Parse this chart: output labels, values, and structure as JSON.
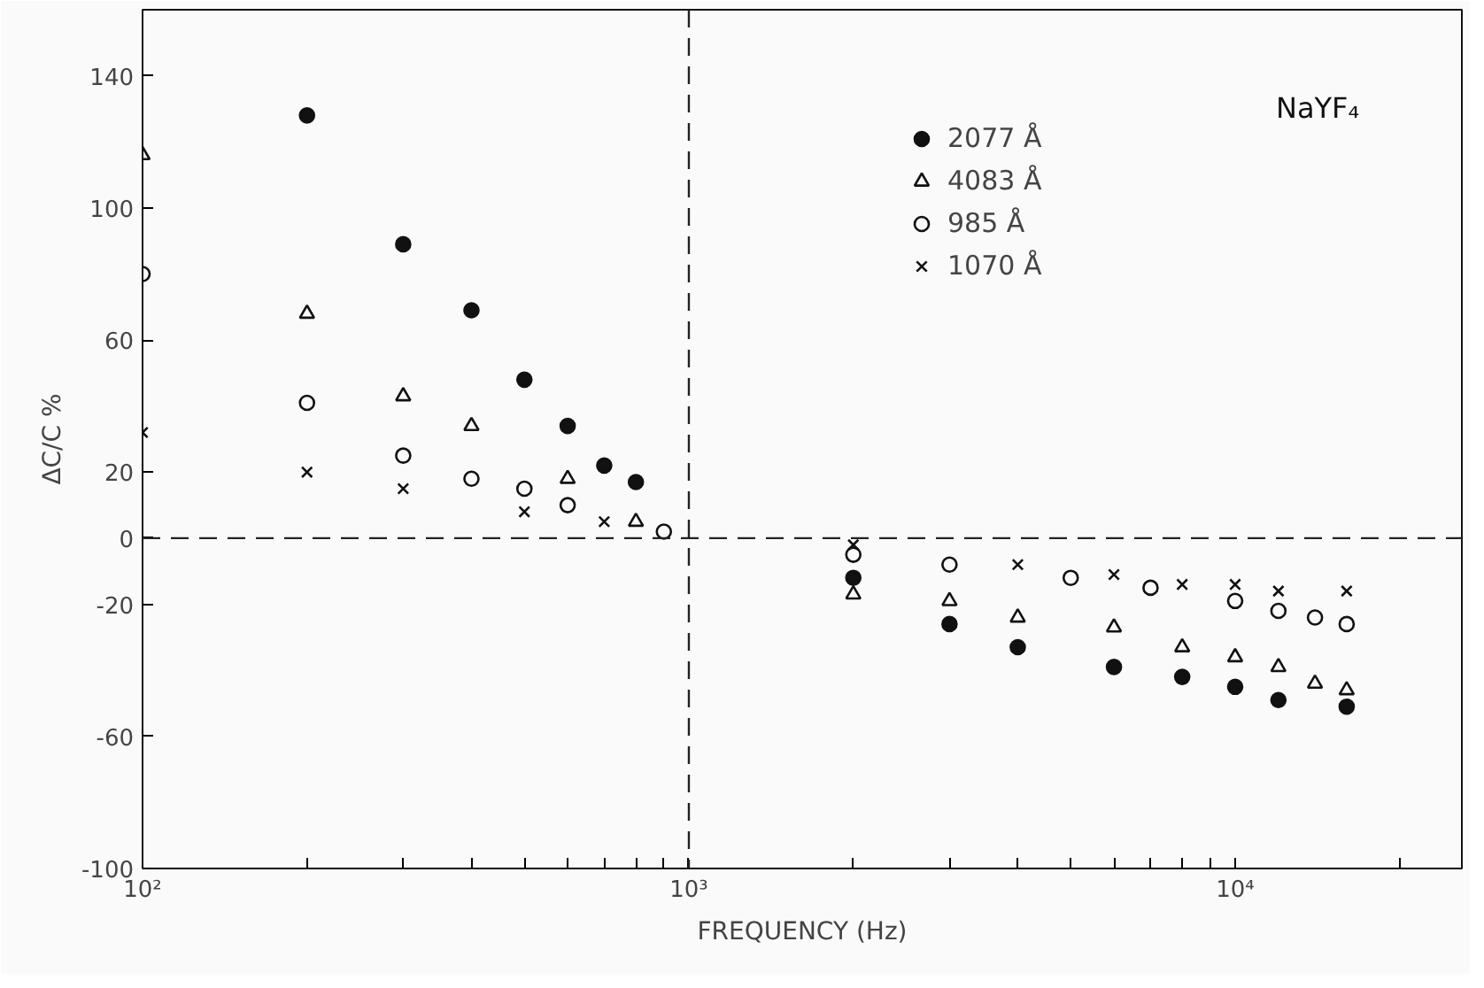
{
  "chart_data": {
    "type": "scatter",
    "xlabel": "FREQUENCY (Hz)",
    "ylabel": "ΔC/C %",
    "annotations": [
      "NaYF₄"
    ],
    "log": "x",
    "grid": false,
    "legend": "top right",
    "xlim": [
      100,
      26000
    ],
    "ylim": [
      -100,
      160
    ],
    "xticks": [
      {
        "value": 100,
        "label": "10²"
      },
      {
        "value": 200,
        "label": null
      },
      {
        "value": 300,
        "label": null
      },
      {
        "value": 400,
        "label": null
      },
      {
        "value": 500,
        "label": null
      },
      {
        "value": 600,
        "label": null
      },
      {
        "value": 700,
        "label": null
      },
      {
        "value": 800,
        "label": null
      },
      {
        "value": 900,
        "label": null
      },
      {
        "value": 1000,
        "label": "10³"
      },
      {
        "value": 2000,
        "label": null
      },
      {
        "value": 3000,
        "label": null
      },
      {
        "value": 4000,
        "label": null
      },
      {
        "value": 5000,
        "label": null
      },
      {
        "value": 6000,
        "label": null
      },
      {
        "value": 7000,
        "label": null
      },
      {
        "value": 8000,
        "label": null
      },
      {
        "value": 9000,
        "label": null
      },
      {
        "value": 10000,
        "label": "10⁴"
      },
      {
        "value": 20000,
        "label": null
      }
    ],
    "yticks": [
      -100,
      -60,
      -20,
      0,
      20,
      60,
      100,
      140
    ],
    "ref_lines": [
      {
        "axis": "x",
        "value": 1000,
        "line_style": "dashed",
        "color": "#222222"
      },
      {
        "axis": "y",
        "value": 0,
        "line_style": "dashed",
        "color": "#222222"
      }
    ],
    "series": [
      {
        "name": "2077 Å",
        "color": "#111111",
        "marker": "circle",
        "x": [
          200,
          300,
          400,
          500,
          600,
          700,
          800,
          2000,
          3000,
          4000,
          6000,
          8000,
          10000,
          12000,
          16000
        ],
        "values": [
          128,
          89,
          69,
          48,
          34,
          22,
          17,
          -12,
          -26,
          -33,
          -39,
          -42,
          -45,
          -49,
          -51
        ]
      },
      {
        "name": "4083 Å",
        "color": "#111111",
        "marker": "triangle",
        "x": [
          100,
          200,
          300,
          400,
          600,
          800,
          2000,
          3000,
          4000,
          6000,
          8000,
          10000,
          12000,
          14000,
          16000
        ],
        "values": [
          116,
          68,
          43,
          34,
          18,
          5,
          -17,
          -19,
          -24,
          -27,
          -33,
          -36,
          -39,
          -44,
          -46
        ]
      },
      {
        "name": "985 Å",
        "color": "#111111",
        "marker": "circle_open",
        "x": [
          100,
          200,
          300,
          400,
          500,
          600,
          900,
          2000,
          3000,
          5000,
          7000,
          10000,
          12000,
          14000,
          16000
        ],
        "values": [
          80,
          41,
          25,
          18,
          15,
          10,
          2,
          -5,
          -8,
          -12,
          -15,
          -19,
          -22,
          -24,
          -26
        ]
      },
      {
        "name": "1070 Å",
        "color": "#111111",
        "marker": "x",
        "x": [
          100,
          200,
          300,
          500,
          700,
          2000,
          4000,
          6000,
          8000,
          10000,
          12000,
          16000
        ],
        "values": [
          32,
          20,
          15,
          8,
          5,
          -2,
          -8,
          -11,
          -14,
          -14,
          -16,
          -16
        ]
      }
    ]
  }
}
